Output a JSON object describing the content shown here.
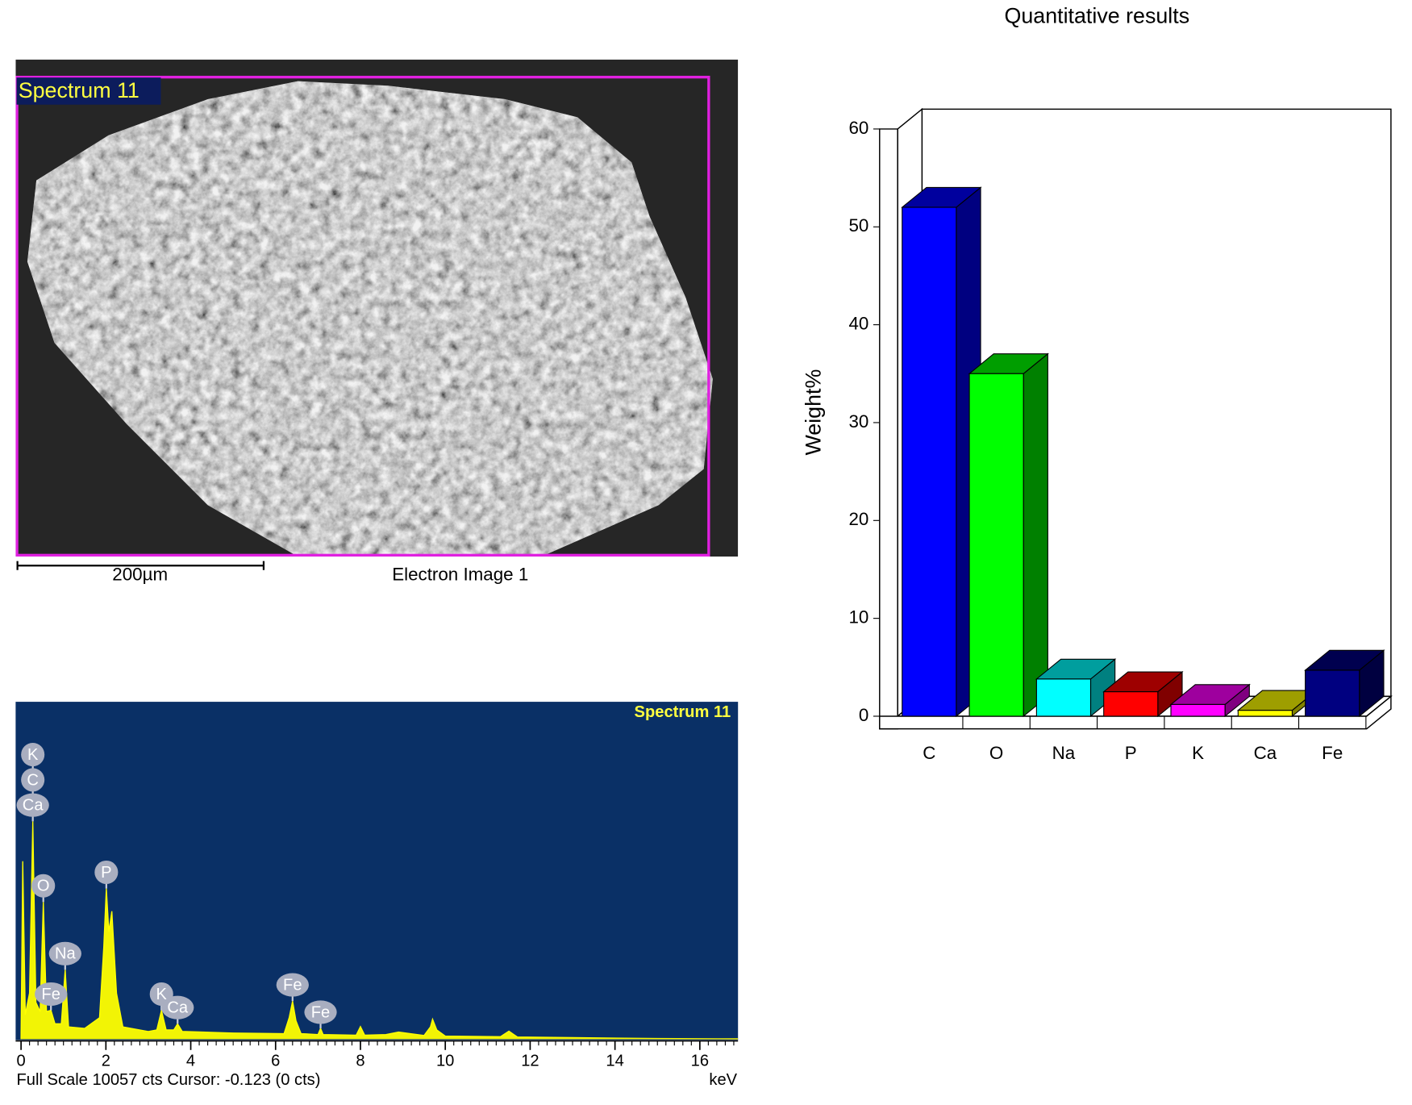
{
  "image": {
    "label": "Spectrum 11",
    "scale_bar": "200µm",
    "caption": "Electron Image 1"
  },
  "chart_data": [
    {
      "type": "bar",
      "title": "Quantitative results",
      "ylabel": "Weight%",
      "categories": [
        "C",
        "O",
        "Na",
        "P",
        "K",
        "Ca",
        "Fe"
      ],
      "values": [
        52,
        35,
        3.8,
        2.5,
        1.2,
        0.6,
        4.7
      ],
      "colors": [
        "#0000ff",
        "#00ff00",
        "#00ffff",
        "#ff0000",
        "#ff00ff",
        "#ffff00",
        "#000080"
      ],
      "ylim": [
        0,
        60
      ],
      "yticks": [
        0,
        10,
        20,
        30,
        40,
        50,
        60
      ],
      "grid": false
    },
    {
      "type": "area",
      "title": "Spectrum 11",
      "xlabel": "keV",
      "note": "Full Scale 10057 cts Cursor: -0.123  (0 cts)",
      "color": "#ffff00",
      "background": "#0a3066",
      "x": [
        0,
        0.04,
        0.1,
        0.2,
        0.277,
        0.35,
        0.45,
        0.525,
        0.6,
        0.705,
        0.8,
        0.95,
        1.04,
        1.12,
        1.5,
        1.85,
        1.95,
        2.01,
        2.07,
        2.14,
        2.25,
        2.4,
        3.0,
        3.2,
        3.31,
        3.42,
        3.6,
        3.69,
        3.8,
        5.0,
        6.2,
        6.32,
        6.4,
        6.48,
        6.6,
        7.0,
        7.06,
        7.12,
        7.9,
        8.0,
        8.1,
        8.6,
        8.9,
        9.5,
        9.65,
        9.7,
        9.8,
        10.0,
        11.3,
        11.5,
        11.7,
        13,
        15,
        16.9
      ],
      "values": [
        0,
        5800,
        800,
        1500,
        7100,
        1200,
        900,
        4470,
        900,
        940,
        500,
        500,
        2260,
        400,
        350,
        700,
        3000,
        4910,
        3500,
        4170,
        1500,
        400,
        250,
        300,
        940,
        300,
        300,
        500,
        250,
        200,
        180,
        700,
        1240,
        600,
        180,
        150,
        350,
        150,
        130,
        410,
        130,
        150,
        230,
        120,
        400,
        650,
        300,
        100,
        80,
        260,
        70,
        50,
        20,
        10
      ],
      "xlim": [
        0,
        16.9
      ],
      "xticks": [
        0,
        2,
        4,
        6,
        8,
        10,
        12,
        14,
        16
      ],
      "ylim": [
        0,
        10057
      ],
      "annotations": [
        {
          "text": "K",
          "x": 0.277
        },
        {
          "text": "C",
          "x": 0.277
        },
        {
          "text": "Ca",
          "x": 0.277
        },
        {
          "text": "O",
          "x": 0.525
        },
        {
          "text": "Fe",
          "x": 0.705
        },
        {
          "text": "Na",
          "x": 1.04
        },
        {
          "text": "P",
          "x": 2.01
        },
        {
          "text": "K",
          "x": 3.31
        },
        {
          "text": "Ca",
          "x": 3.69
        },
        {
          "text": "Fe",
          "x": 6.4
        },
        {
          "text": "Fe",
          "x": 7.06
        }
      ]
    }
  ]
}
